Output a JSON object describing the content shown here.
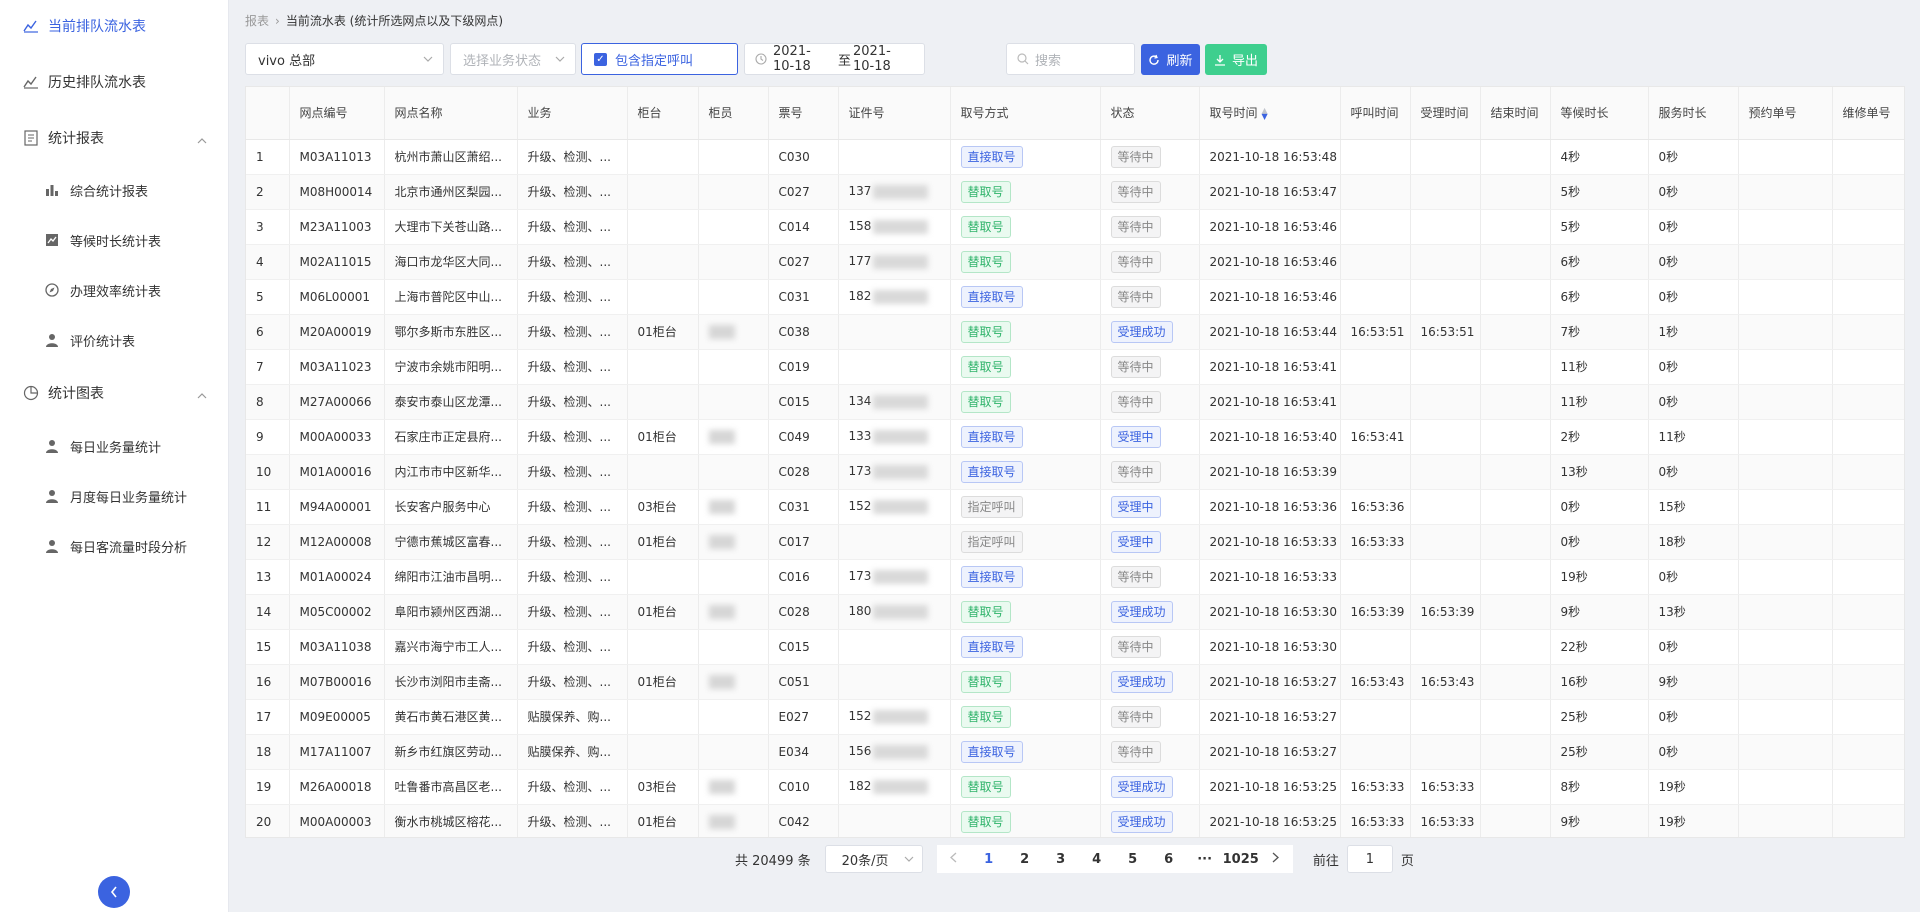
{
  "sidebar": {
    "items": [
      {
        "label": "当前排队流水表",
        "icon": "chart-line-icon",
        "active": true
      },
      {
        "label": "历史排队流水表",
        "icon": "chart-line-icon"
      },
      {
        "label": "统计报表",
        "icon": "document-icon",
        "expanded": true
      },
      {
        "label": "综合统计报表",
        "icon": "bar-chart-icon"
      },
      {
        "label": "等候时长统计表",
        "icon": "trend-icon"
      },
      {
        "label": "办理效率统计表",
        "icon": "compass-icon"
      },
      {
        "label": "评价统计表",
        "icon": "user-icon"
      },
      {
        "label": "统计图表",
        "icon": "pie-chart-icon",
        "expanded": true
      },
      {
        "label": "每日业务量统计",
        "icon": "user-icon"
      },
      {
        "label": "月度每日业务量统计",
        "icon": "user-icon"
      },
      {
        "label": "每日客流量时段分析",
        "icon": "user-icon"
      }
    ],
    "collapse_icon": "chevron-left-icon"
  },
  "breadcrumb": {
    "root": "报表",
    "current": "当前流水表 (统计所选网点以及下级网点)"
  },
  "toolbar": {
    "org_select": "vivo 总部",
    "status_placeholder": "选择业务状态",
    "include_call_label": "包含指定呼叫",
    "date_start": "2021-10-18",
    "date_sep": "至",
    "date_end": "2021-10-18",
    "search_placeholder": "搜索",
    "refresh_label": "刷新",
    "export_label": "导出",
    "accent": "#3b63e0",
    "export_color": "#3ecf8e"
  },
  "table": {
    "columns": [
      "",
      "网点编号",
      "网点名称",
      "业务",
      "柜台",
      "柜员",
      "票号",
      "证件号",
      "取号方式",
      "状态",
      "取号时间",
      "呼叫时间",
      "受理时间",
      "结束时间",
      "等候时长",
      "服务时长",
      "预约单号",
      "维修单号"
    ],
    "rows": [
      [
        "1",
        "M03A11013",
        "杭州市萧山区萧绍...",
        "升级、检测、...",
        "",
        "",
        "C030",
        "",
        "直接取号",
        "等待中",
        "2021-10-18 16:53:48",
        "",
        "",
        "",
        "4秒",
        "0秒",
        "",
        ""
      ],
      [
        "2",
        "M08H00014",
        "北京市通州区梨园...",
        "升级、检测、...",
        "",
        "",
        "C027",
        "137",
        "替取号",
        "等待中",
        "2021-10-18 16:53:47",
        "",
        "",
        "",
        "5秒",
        "0秒",
        "",
        ""
      ],
      [
        "3",
        "M23A11003",
        "大理市下关苍山路...",
        "升级、检测、...",
        "",
        "",
        "C014",
        "158",
        "替取号",
        "等待中",
        "2021-10-18 16:53:46",
        "",
        "",
        "",
        "5秒",
        "0秒",
        "",
        ""
      ],
      [
        "4",
        "M02A11015",
        "海口市龙华区大同...",
        "升级、检测、...",
        "",
        "",
        "C027",
        "177",
        "替取号",
        "等待中",
        "2021-10-18 16:53:46",
        "",
        "",
        "",
        "6秒",
        "0秒",
        "",
        ""
      ],
      [
        "5",
        "M06L00001",
        "上海市普陀区中山...",
        "升级、检测、...",
        "",
        "",
        "C031",
        "182",
        "直接取号",
        "等待中",
        "2021-10-18 16:53:46",
        "",
        "",
        "",
        "6秒",
        "0秒",
        "",
        ""
      ],
      [
        "6",
        "M20A00019",
        "鄂尔多斯市东胜区...",
        "升级、检测、...",
        "01柜台",
        "blur",
        "C038",
        "",
        "替取号",
        "受理成功",
        "2021-10-18 16:53:44",
        "16:53:51",
        "16:53:51",
        "",
        "7秒",
        "1秒",
        "",
        ""
      ],
      [
        "7",
        "M03A11023",
        "宁波市余姚市阳明...",
        "升级、检测、...",
        "",
        "",
        "C019",
        "",
        "替取号",
        "等待中",
        "2021-10-18 16:53:41",
        "",
        "",
        "",
        "11秒",
        "0秒",
        "",
        ""
      ],
      [
        "8",
        "M27A00066",
        "泰安市泰山区龙潭...",
        "升级、检测、...",
        "",
        "",
        "C015",
        "134",
        "替取号",
        "等待中",
        "2021-10-18 16:53:41",
        "",
        "",
        "",
        "11秒",
        "0秒",
        "",
        ""
      ],
      [
        "9",
        "M00A00033",
        "石家庄市正定县府...",
        "升级、检测、...",
        "01柜台",
        "blur",
        "C049",
        "133",
        "直接取号",
        "受理中",
        "2021-10-18 16:53:40",
        "16:53:41",
        "",
        "",
        "2秒",
        "11秒",
        "",
        ""
      ],
      [
        "10",
        "M01A00016",
        "内江市市中区新华...",
        "升级、检测、...",
        "",
        "",
        "C028",
        "173",
        "直接取号",
        "等待中",
        "2021-10-18 16:53:39",
        "",
        "",
        "",
        "13秒",
        "0秒",
        "",
        ""
      ],
      [
        "11",
        "M94A00001",
        "长安客户服务中心",
        "升级、检测、...",
        "03柜台",
        "blur",
        "C031",
        "152",
        "指定呼叫",
        "受理中",
        "2021-10-18 16:53:36",
        "16:53:36",
        "",
        "",
        "0秒",
        "15秒",
        "",
        ""
      ],
      [
        "12",
        "M12A00008",
        "宁德市蕉城区富春...",
        "升级、检测、...",
        "01柜台",
        "blur",
        "C017",
        "",
        "指定呼叫",
        "受理中",
        "2021-10-18 16:53:33",
        "16:53:33",
        "",
        "",
        "0秒",
        "18秒",
        "",
        ""
      ],
      [
        "13",
        "M01A00024",
        "绵阳市江油市昌明...",
        "升级、检测、...",
        "",
        "",
        "C016",
        "173",
        "直接取号",
        "等待中",
        "2021-10-18 16:53:33",
        "",
        "",
        "",
        "19秒",
        "0秒",
        "",
        ""
      ],
      [
        "14",
        "M05C00002",
        "阜阳市颍州区西湖...",
        "升级、检测、...",
        "01柜台",
        "blur",
        "C028",
        "180",
        "替取号",
        "受理成功",
        "2021-10-18 16:53:30",
        "16:53:39",
        "16:53:39",
        "",
        "9秒",
        "13秒",
        "",
        ""
      ],
      [
        "15",
        "M03A11038",
        "嘉兴市海宁市工人...",
        "升级、检测、...",
        "",
        "",
        "C015",
        "",
        "直接取号",
        "等待中",
        "2021-10-18 16:53:30",
        "",
        "",
        "",
        "22秒",
        "0秒",
        "",
        ""
      ],
      [
        "16",
        "M07B00016",
        "长沙市浏阳市圭斋...",
        "升级、检测、...",
        "01柜台",
        "blur",
        "C051",
        "",
        "替取号",
        "受理成功",
        "2021-10-18 16:53:27",
        "16:53:43",
        "16:53:43",
        "",
        "16秒",
        "9秒",
        "",
        ""
      ],
      [
        "17",
        "M09E00005",
        "黄石市黄石港区黄...",
        "贴膜保养、购...",
        "",
        "",
        "E027",
        "152",
        "替取号",
        "等待中",
        "2021-10-18 16:53:27",
        "",
        "",
        "",
        "25秒",
        "0秒",
        "",
        ""
      ],
      [
        "18",
        "M17A11007",
        "新乡市红旗区劳动...",
        "贴膜保养、购...",
        "",
        "",
        "E034",
        "156",
        "直接取号",
        "等待中",
        "2021-10-18 16:53:27",
        "",
        "",
        "",
        "25秒",
        "0秒",
        "",
        ""
      ],
      [
        "19",
        "M26A00018",
        "吐鲁番市高昌区老...",
        "升级、检测、...",
        "03柜台",
        "blur",
        "C010",
        "182",
        "替取号",
        "受理成功",
        "2021-10-18 16:53:25",
        "16:53:33",
        "16:53:33",
        "",
        "8秒",
        "19秒",
        "",
        ""
      ],
      [
        "20",
        "M00A00003",
        "衡水市桃城区榕花...",
        "升级、检测、...",
        "01柜台",
        "blur",
        "C042",
        "",
        "替取号",
        "受理成功",
        "2021-10-18 16:53:25",
        "16:53:33",
        "16:53:33",
        "",
        "9秒",
        "19秒",
        "",
        ""
      ]
    ]
  },
  "pagination": {
    "total": "共 20499 条",
    "page_size": "20条/页",
    "pages": [
      "1",
      "2",
      "3",
      "4",
      "5",
      "6",
      "···",
      "1025"
    ],
    "current": "1",
    "goto_label": "前往",
    "goto_value": "1",
    "page_unit": "页"
  }
}
